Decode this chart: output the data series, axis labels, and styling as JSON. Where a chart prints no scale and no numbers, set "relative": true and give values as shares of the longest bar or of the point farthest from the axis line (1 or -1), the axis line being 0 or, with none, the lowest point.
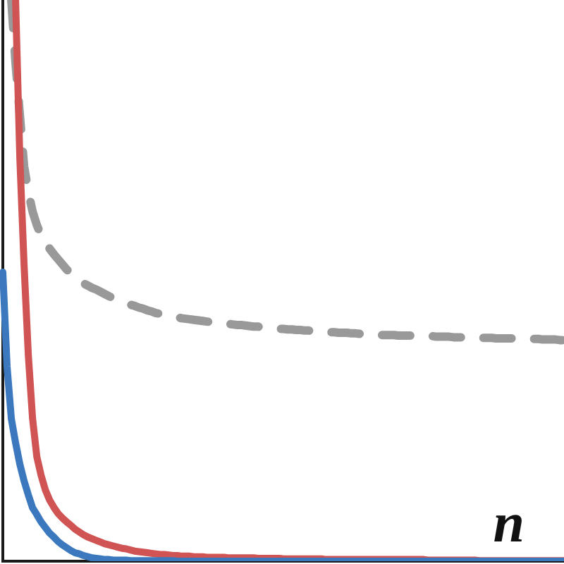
{
  "chart_data": {
    "type": "line",
    "relative": true,
    "xlabel": "n",
    "marker": "none",
    "categories": [
      null,
      null,
      null,
      null,
      null,
      null,
      null,
      null,
      null,
      null,
      null,
      null,
      null,
      null,
      null,
      null,
      null,
      null,
      null,
      null,
      null,
      null,
      null,
      null,
      null,
      null,
      null,
      null,
      null,
      null,
      null,
      null,
      null,
      null,
      null,
      null,
      null,
      null,
      null,
      null,
      null,
      null,
      null,
      null,
      null,
      null,
      null,
      null,
      null,
      null,
      null,
      null,
      null,
      null,
      null,
      null,
      null,
      null,
      null,
      null,
      null,
      null,
      null,
      null,
      null,
      null,
      null,
      null,
      null,
      null,
      null,
      null,
      null,
      null,
      null,
      null,
      null,
      null,
      null,
      null,
      null,
      null,
      null,
      null,
      null,
      null,
      null,
      null,
      null,
      null,
      null,
      null,
      null,
      null,
      null,
      null,
      null,
      null,
      null,
      null,
      null,
      null,
      null,
      null,
      null,
      null,
      null,
      null,
      null,
      null,
      null,
      null,
      null,
      null,
      null,
      null,
      null,
      null,
      null,
      null,
      null,
      null,
      null,
      null,
      null,
      null,
      null,
      null,
      null,
      null,
      null,
      null,
      null
    ],
    "series": [
      {
        "color": "#999999",
        "line_style": "dashed",
        "values": [
          null,
          null,
          1,
          0.887,
          0.796,
          0.704,
          0.658,
          0.623,
          0.599,
          0.58,
          0.568,
          0.557,
          0.547,
          0.538,
          0.529,
          0.52,
          0.513,
          0.506,
          0.5,
          0.495,
          0.491,
          0.487,
          0.484,
          0.48,
          0.476,
          0.472,
          0.469,
          0.466,
          0.463,
          0.46,
          0.457,
          0.455,
          0.452,
          0.45,
          0.447,
          0.445,
          0.442,
          0.441,
          0.439,
          0.437,
          0.436,
          0.435,
          0.433,
          0.432,
          0.431,
          0.43,
          0.429,
          0.428,
          0.427,
          0.426,
          0.425,
          0.424,
          0.424,
          0.423,
          0.422,
          0.421,
          0.421,
          0.42,
          0.419,
          0.418,
          0.418,
          0.417,
          0.416,
          0.415,
          0.415,
          0.414,
          0.414,
          0.413,
          0.413,
          0.412,
          0.412,
          0.411,
          0.411,
          0.41,
          0.41,
          0.409,
          0.409,
          0.408,
          0.408,
          0.407,
          0.407,
          0.407,
          0.406,
          0.406,
          0.405,
          0.405,
          0.404,
          0.404,
          0.404,
          0.403,
          0.403,
          0.403,
          0.403,
          0.402,
          0.402,
          0.402,
          0.402,
          0.401,
          0.401,
          0.401,
          0.401,
          0.401,
          0.4,
          0.4,
          0.4,
          0.4,
          0.399,
          0.399,
          0.399,
          0.399,
          0.399,
          0.398,
          0.398,
          0.398,
          0.398,
          0.398,
          0.397,
          0.397,
          0.397,
          0.397,
          0.397,
          0.396,
          0.396,
          0.396,
          0.396,
          0.396,
          0.396,
          0.395,
          0.395,
          0.395,
          0.395,
          0.394,
          0.394
        ]
      },
      {
        "color": "#d05454",
        "line_style": "solid",
        "values": [
          null,
          null,
          null,
          1,
          0.719,
          0.528,
          0.367,
          0.254,
          0.186,
          0.153,
          0.127,
          0.109,
          0.096,
          0.085,
          0.077,
          0.07,
          0.064,
          0.057,
          0.052,
          0.047,
          0.043,
          0.04,
          0.037,
          0.034,
          0.031,
          0.029,
          0.027,
          0.025,
          0.023,
          0.022,
          0.02,
          0.018,
          0.017,
          0.016,
          0.015,
          0.014,
          0.013,
          0.012,
          0.012,
          0.011,
          0.01,
          0.01,
          0.009,
          0.009,
          0.009,
          0.008,
          0.008,
          0.008,
          0.007,
          0.007,
          0.007,
          0.007,
          0.007,
          0.006,
          0.006,
          0.006,
          0.006,
          0.006,
          0.006,
          0.006,
          0.005,
          0.005,
          0.005,
          0.005,
          0.005,
          0.005,
          0.004,
          0.004,
          0.004,
          0.004,
          0.004,
          0.004,
          0.004,
          0.004,
          0.004,
          0.004,
          0.003,
          0.003,
          0.003,
          0.003,
          0.003,
          0.003,
          0.003,
          0.003,
          0.003,
          0.003,
          0.003,
          0.003,
          0.003,
          0.003,
          0.003,
          0.003,
          0.003,
          0.003,
          0.003,
          0.003,
          0.003,
          0.003,
          0.003,
          0.003,
          0.002,
          0.002,
          0.002,
          0.002,
          0.002,
          0.002,
          0.002,
          0.002,
          0.002,
          0.002,
          0.002,
          0.002,
          0.001,
          0.001,
          0.001,
          0.001,
          0.001,
          0.001,
          0.001,
          0.001,
          0.001,
          0.001,
          0.001,
          0.001,
          0.001,
          0.001,
          0.001,
          0.001,
          0.001,
          0.001,
          0.001,
          0.001,
          0.001
        ]
      },
      {
        "color": "#3b78bd",
        "line_style": "solid",
        "values": [
          0.515,
          0.347,
          0.254,
          0.211,
          0.173,
          0.143,
          0.118,
          0.095,
          0.083,
          0.07,
          0.06,
          0.05,
          0.043,
          0.035,
          0.029,
          0.024,
          0.019,
          0.015,
          0.013,
          0.01,
          0.008,
          0.006,
          0.005,
          0.004,
          0.003,
          0.003,
          0.002,
          0.002,
          0.002,
          0.002,
          0.001,
          0.001,
          0.001,
          0.001,
          0.001,
          0.001,
          0.001,
          0.001,
          0.001,
          0.001,
          0.001,
          0,
          0,
          0,
          0,
          0,
          0,
          0,
          0,
          0,
          0,
          0,
          0,
          0,
          0,
          0,
          0,
          0,
          0,
          0,
          0,
          0,
          0,
          0,
          0,
          0,
          0,
          0,
          0,
          0,
          0,
          0,
          0,
          0,
          0,
          0,
          0,
          0,
          0,
          0,
          0,
          0,
          0,
          0,
          0,
          0,
          0,
          0,
          0,
          0,
          0,
          0,
          0,
          0,
          0,
          0,
          0,
          0,
          0,
          0,
          0,
          0,
          0,
          0,
          0,
          0,
          0,
          0,
          0,
          0,
          0,
          0,
          0,
          0,
          0,
          0,
          0,
          0,
          0,
          0,
          0,
          0,
          0,
          0,
          0,
          0,
          0,
          0,
          0,
          0,
          0,
          0,
          0
        ]
      }
    ]
  }
}
